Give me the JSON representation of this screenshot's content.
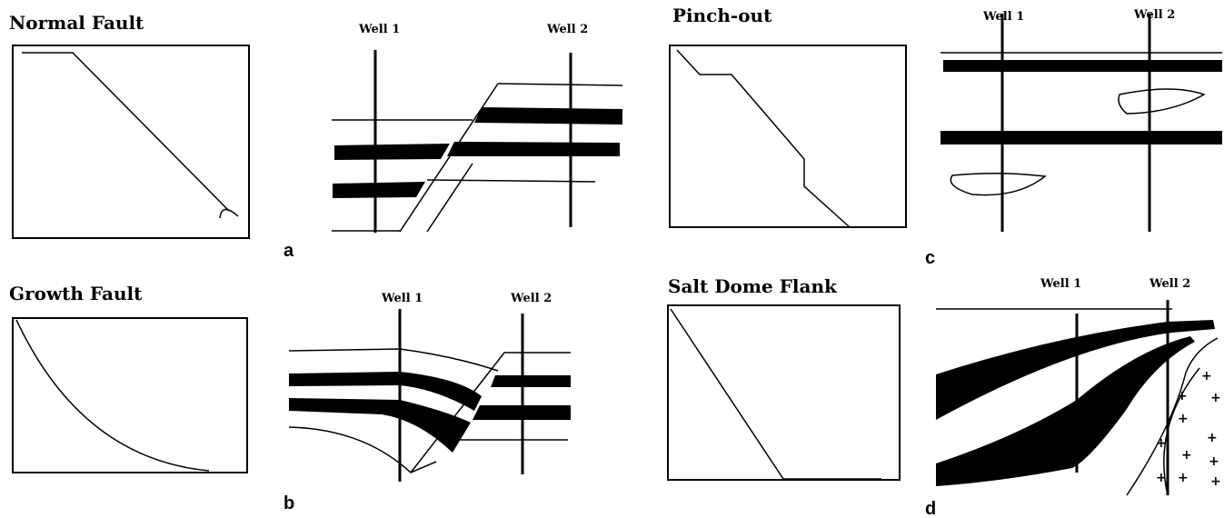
{
  "panels": [
    {
      "title": "Normal Fault",
      "label": "a",
      "wells": [
        "Well 1",
        "Well 2"
      ]
    },
    {
      "title": "Growth Fault",
      "label": "b",
      "wells": [
        "Well 1",
        "Well 2"
      ]
    },
    {
      "title": "Pinch-out",
      "label": "c",
      "wells": [
        "Well 1",
        "Well 2"
      ]
    },
    {
      "title": "Salt Dome Flank",
      "label": "d",
      "wells": [
        "Well 1",
        "Well 2"
      ]
    }
  ]
}
